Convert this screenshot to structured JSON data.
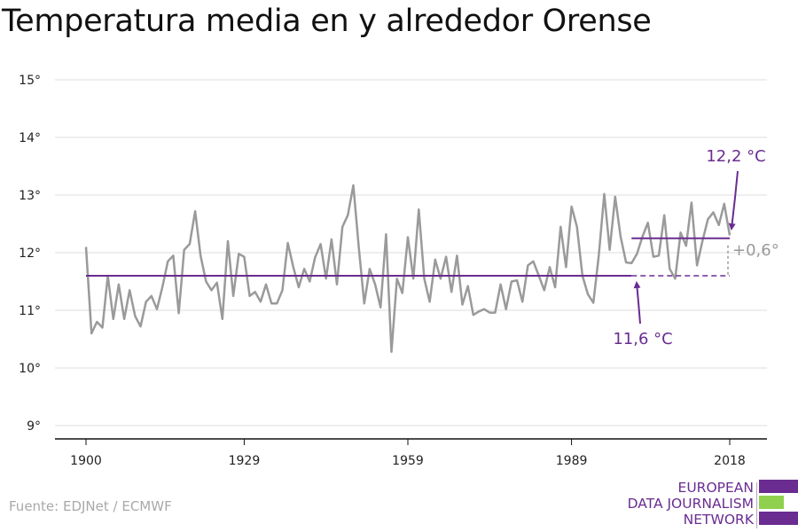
{
  "title": "Temperatura media en y alrededor Orense",
  "source": "Fuente: EDJNet / ECMWF",
  "logo": {
    "lines": [
      "EUROPEAN",
      "DATA JOURNALISM",
      "NETWORK"
    ],
    "colors": {
      "purple": "#6a2c91",
      "green": "#8fd14f"
    }
  },
  "colors": {
    "series": "#9a9a9a",
    "reference": "#6a2c91",
    "grid": "#dddddd",
    "axis": "#111111",
    "diff": "#999999"
  },
  "chart_data": {
    "type": "line",
    "title": "Temperatura media en y alrededor Orense",
    "xlim": [
      1900,
      2018
    ],
    "ylim": [
      9,
      15
    ],
    "x_ticks": [
      1900,
      1929,
      1959,
      1989,
      2018
    ],
    "x_tick_labels": [
      "1900",
      "1929",
      "1959",
      "1989",
      "2018"
    ],
    "y_ticks": [
      9,
      10,
      11,
      12,
      13,
      14,
      15
    ],
    "y_tick_labels": [
      "9°",
      "10°",
      "11°",
      "12°",
      "13°",
      "14°",
      "15°"
    ],
    "grid": true,
    "series": [
      {
        "x": [
          1900,
          1901,
          1902,
          1903,
          1904,
          1905,
          1906,
          1907,
          1908,
          1909,
          1910,
          1911,
          1912,
          1913,
          1914,
          1915,
          1916,
          1917,
          1918,
          1919,
          1920,
          1921,
          1922,
          1923,
          1924,
          1925,
          1926,
          1927,
          1928,
          1929,
          1930,
          1931,
          1932,
          1933,
          1934,
          1935,
          1936,
          1937,
          1938,
          1939,
          1940,
          1941,
          1942,
          1943,
          1944,
          1945,
          1946,
          1947,
          1948,
          1949,
          1950,
          1951,
          1952,
          1953,
          1954,
          1955,
          1956,
          1957,
          1958,
          1959,
          1960,
          1961,
          1962,
          1963,
          1964,
          1965,
          1966,
          1967,
          1968,
          1969,
          1970,
          1971,
          1972,
          1973,
          1974,
          1975,
          1976,
          1977,
          1978,
          1979,
          1980,
          1981,
          1982,
          1983,
          1984,
          1985,
          1986,
          1987,
          1988,
          1989,
          1990,
          1991,
          1992,
          1993,
          1994,
          1995,
          1996,
          1997,
          1998,
          1999,
          2000,
          2001,
          2002,
          2003,
          2004,
          2005,
          2006,
          2007,
          2008,
          2009,
          2010,
          2011,
          2012,
          2013,
          2014,
          2015,
          2016,
          2017,
          2018
        ],
        "values": [
          12.1,
          10.6,
          10.8,
          10.7,
          11.6,
          10.85,
          11.45,
          10.85,
          11.35,
          10.9,
          10.72,
          11.15,
          11.25,
          11.02,
          11.4,
          11.85,
          11.95,
          10.95,
          12.05,
          12.15,
          12.72,
          11.95,
          11.5,
          11.35,
          11.48,
          10.85,
          12.2,
          11.25,
          11.98,
          11.93,
          11.25,
          11.32,
          11.15,
          11.45,
          11.12,
          11.12,
          11.35,
          12.17,
          11.75,
          11.4,
          11.72,
          11.5,
          11.92,
          12.15,
          11.55,
          12.23,
          11.45,
          12.45,
          12.65,
          13.17,
          12.1,
          11.12,
          11.72,
          11.45,
          11.05,
          12.32,
          10.28,
          11.55,
          11.3,
          12.27,
          11.55,
          12.75,
          11.55,
          11.15,
          11.88,
          11.55,
          11.93,
          11.32,
          11.95,
          11.1,
          11.42,
          10.92,
          10.98,
          11.02,
          10.96,
          10.96,
          11.45,
          11.02,
          11.5,
          11.52,
          11.15,
          11.78,
          11.85,
          11.6,
          11.35,
          11.75,
          11.4,
          12.45,
          11.75,
          12.8,
          12.45,
          11.6,
          11.28,
          11.13,
          11.95,
          13.02,
          12.05,
          12.97,
          12.28,
          11.83,
          11.82,
          11.98,
          12.28,
          12.52,
          11.93,
          11.95,
          12.65,
          11.72,
          11.55,
          12.35,
          12.12,
          12.87,
          11.78,
          12.2,
          12.58,
          12.7,
          12.48,
          12.85,
          12.3
        ]
      }
    ],
    "reference_line": {
      "value": 11.6,
      "x_start": 1900,
      "x_end": 2018,
      "x_dashed_from": 2000,
      "label": "11,6 °C"
    },
    "recent_line": {
      "value": 12.25,
      "x_start": 2000,
      "x_end": 2018,
      "label": "12,2 °C"
    },
    "difference": {
      "label": "+0,6°"
    }
  }
}
